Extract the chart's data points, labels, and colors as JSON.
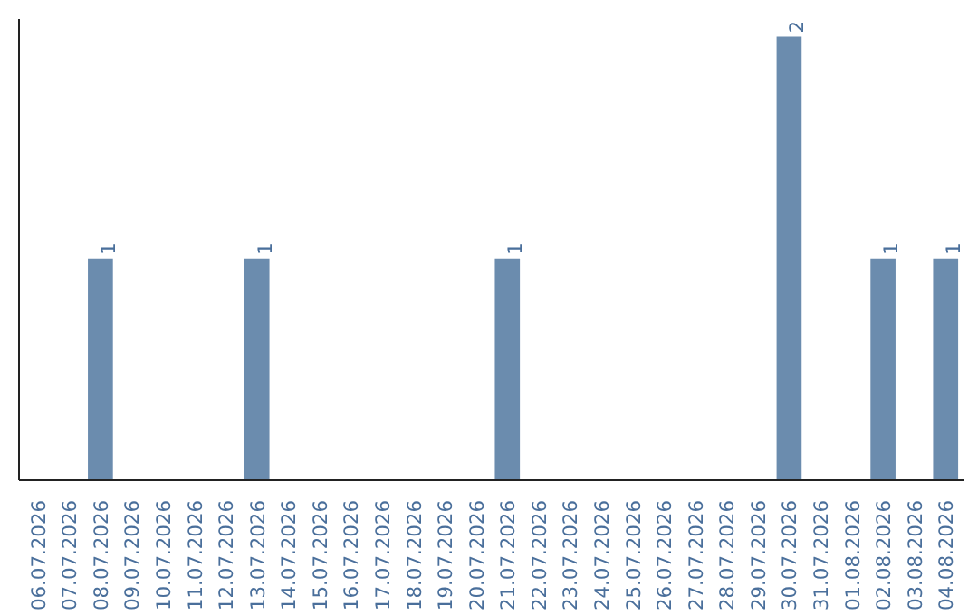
{
  "chart_data": {
    "type": "bar",
    "categories": [
      "06.07.2026",
      "07.07.2026",
      "08.07.2026",
      "09.07.2026",
      "10.07.2026",
      "11.07.2026",
      "12.07.2026",
      "13.07.2026",
      "14.07.2026",
      "15.07.2026",
      "16.07.2026",
      "17.07.2026",
      "18.07.2026",
      "19.07.2026",
      "20.07.2026",
      "21.07.2026",
      "22.07.2026",
      "23.07.2026",
      "24.07.2026",
      "25.07.2026",
      "26.07.2026",
      "27.07.2026",
      "28.07.2026",
      "29.07.2026",
      "30.07.2026",
      "31.07.2026",
      "01.08.2026",
      "02.08.2026",
      "03.08.2026",
      "04.08.2026"
    ],
    "values": [
      0,
      0,
      1,
      0,
      0,
      0,
      0,
      1,
      0,
      0,
      0,
      0,
      0,
      0,
      0,
      1,
      0,
      0,
      0,
      0,
      0,
      0,
      0,
      0,
      2,
      0,
      0,
      1,
      0,
      1
    ],
    "value_labels": [
      null,
      null,
      "1",
      null,
      null,
      null,
      null,
      "1",
      null,
      null,
      null,
      null,
      null,
      null,
      null,
      "1",
      null,
      null,
      null,
      null,
      null,
      null,
      null,
      null,
      "2",
      null,
      null,
      "1",
      null,
      "1"
    ],
    "color": "#6b8cae",
    "tick_labels": "x"
  }
}
